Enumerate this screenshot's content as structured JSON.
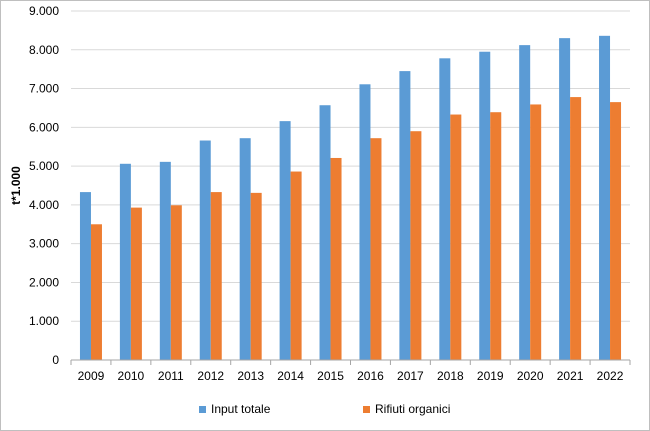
{
  "chart_data": {
    "type": "bar",
    "title": "",
    "xlabel": "",
    "ylabel": "t*1.000",
    "ylim": [
      0,
      9000
    ],
    "yticks": [
      "0",
      "1.000",
      "2.000",
      "3.000",
      "4.000",
      "5.000",
      "6.000",
      "7.000",
      "8.000",
      "9.000"
    ],
    "ytick_values": [
      0,
      1000,
      2000,
      3000,
      4000,
      5000,
      6000,
      7000,
      8000,
      9000
    ],
    "grid": true,
    "legend_position": "bottom",
    "categories": [
      "2009",
      "2010",
      "2011",
      "2012",
      "2013",
      "2014",
      "2015",
      "2016",
      "2017",
      "2018",
      "2019",
      "2020",
      "2021",
      "2022"
    ],
    "series": [
      {
        "name": "Input totale",
        "color": "#5b9bd5",
        "values": [
          4330,
          5060,
          5110,
          5660,
          5720,
          6160,
          6570,
          7110,
          7450,
          7780,
          7950,
          8120,
          8300,
          8360
        ]
      },
      {
        "name": "Rifiuti organici",
        "color": "#ed7d31",
        "values": [
          3500,
          3930,
          3990,
          4330,
          4310,
          4860,
          5210,
          5720,
          5900,
          6330,
          6390,
          6590,
          6780,
          6650
        ]
      }
    ]
  }
}
